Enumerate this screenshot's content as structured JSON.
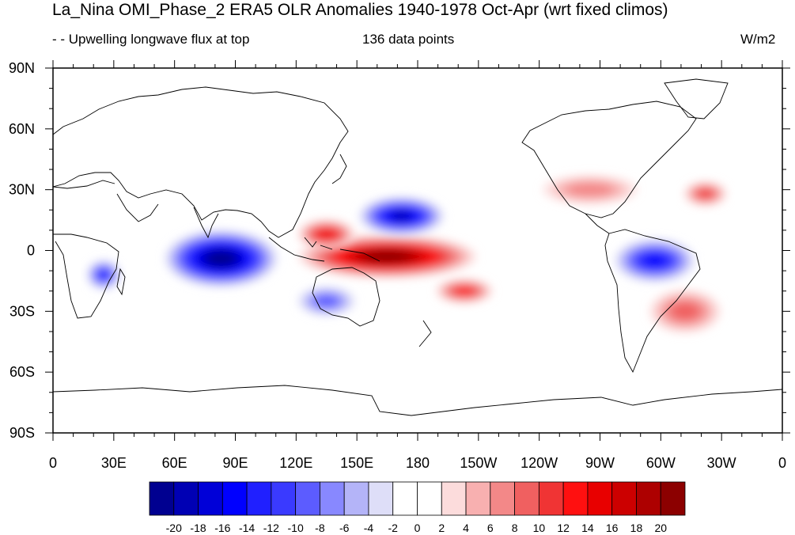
{
  "title": "La_Nina OMI_Phase_2 ERA5 OLR Anomalies 1940-1978 Oct-Apr (wrt fixed climos)",
  "subtitle_left": "- - Upwelling longwave flux at top",
  "subtitle_center": "136 data points",
  "units": "W/m2",
  "map": {
    "lon_range": [
      0,
      360
    ],
    "lat_range": [
      -90,
      90
    ],
    "x_ticks": [
      {
        "lon": 0,
        "label": "0"
      },
      {
        "lon": 30,
        "label": "30E"
      },
      {
        "lon": 60,
        "label": "60E"
      },
      {
        "lon": 90,
        "label": "90E"
      },
      {
        "lon": 120,
        "label": "120E"
      },
      {
        "lon": 150,
        "label": "150E"
      },
      {
        "lon": 180,
        "label": "180"
      },
      {
        "lon": 210,
        "label": "150W"
      },
      {
        "lon": 240,
        "label": "120W"
      },
      {
        "lon": 270,
        "label": "90W"
      },
      {
        "lon": 300,
        "label": "60W"
      },
      {
        "lon": 330,
        "label": "30W"
      },
      {
        "lon": 360,
        "label": "0"
      }
    ],
    "y_ticks": [
      {
        "lat": 90,
        "label": "90N"
      },
      {
        "lat": 60,
        "label": "60N"
      },
      {
        "lat": 30,
        "label": "30N"
      },
      {
        "lat": 0,
        "label": "0"
      },
      {
        "lat": -30,
        "label": "30S"
      },
      {
        "lat": -60,
        "label": "60S"
      },
      {
        "lat": -90,
        "label": "90S"
      }
    ],
    "anomaly_features": [
      {
        "name": "indian-ocean-negative",
        "lon": 83,
        "lat": -4,
        "rlon": 24,
        "rlat": 12,
        "value": -22
      },
      {
        "name": "west-pacific-positive",
        "lon": 165,
        "lat": -3,
        "rlon": 38,
        "rlat": 9,
        "value": 22
      },
      {
        "name": "maritime-positive",
        "lon": 135,
        "lat": 8,
        "rlon": 12,
        "rlat": 6,
        "value": 14
      },
      {
        "name": "north-pacific-negative",
        "lon": 172,
        "lat": 17,
        "rlon": 18,
        "rlat": 8,
        "value": -18
      },
      {
        "name": "spcz-positive",
        "lon": 203,
        "lat": -20,
        "rlon": 12,
        "rlat": 5,
        "value": 12
      },
      {
        "name": "amazon-negative",
        "lon": 297,
        "lat": -5,
        "rlon": 17,
        "rlat": 9,
        "value": -14
      },
      {
        "name": "africa-negative",
        "lon": 25,
        "lat": -12,
        "rlon": 7,
        "rlat": 6,
        "value": -12
      },
      {
        "name": "north-atlantic-positive",
        "lon": 322,
        "lat": 28,
        "rlon": 9,
        "rlat": 5,
        "value": 10
      },
      {
        "name": "australia-negative",
        "lon": 135,
        "lat": -25,
        "rlon": 12,
        "rlat": 6,
        "value": -8
      },
      {
        "name": "south-atlantic-positive",
        "lon": 312,
        "lat": -30,
        "rlon": 15,
        "rlat": 9,
        "value": 8
      },
      {
        "name": "north-america-positive",
        "lon": 265,
        "lat": 30,
        "rlon": 20,
        "rlat": 6,
        "value": 6
      }
    ]
  },
  "colorbar": {
    "colors": [
      "#000090",
      "#0000b4",
      "#0000d8",
      "#0000ff",
      "#2020ff",
      "#3a3aff",
      "#5c5cff",
      "#8888ff",
      "#b4b4f8",
      "#dedef8",
      "#ffffff",
      "#ffffff",
      "#fcdcdc",
      "#f8b0b0",
      "#f38888",
      "#f06060",
      "#f03434",
      "#ff1010",
      "#e80000",
      "#cc0000",
      "#ad0000",
      "#8c0000"
    ],
    "labels": [
      "-20",
      "-18",
      "-16",
      "-14",
      "-12",
      "-10",
      "-8",
      "-6",
      "-4",
      "-2",
      "0",
      "2",
      "4",
      "6",
      "8",
      "10",
      "12",
      "14",
      "16",
      "18",
      "20"
    ]
  }
}
